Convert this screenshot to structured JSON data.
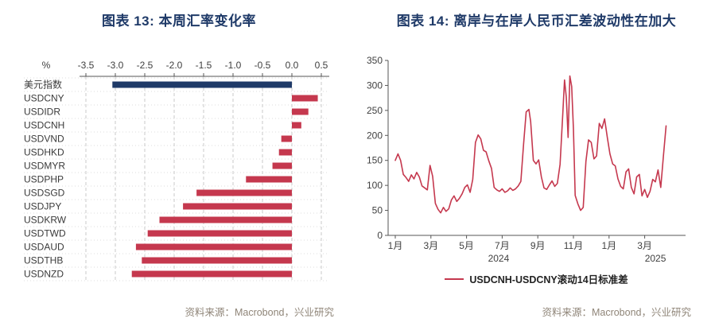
{
  "panels": {
    "left": {
      "title": "图表 13: 本周汇率变化率",
      "source": "资料来源：Macrobond，兴业研究"
    },
    "right": {
      "title": "图表 14: 离岸与在岸人民币汇差波动性在加大",
      "source": "资料来源：Macrobond，兴业研究",
      "legend": "USDCNH-USDCNY滚动14日标准差"
    }
  },
  "colors": {
    "title": "#1f3a68",
    "accent_red": "#c5384e",
    "accent_navy": "#1f3a68",
    "source_text": "#8f8578",
    "axis_text": "#3f3f3f",
    "grid": "#c9c9c9"
  },
  "chart_data": [
    {
      "type": "bar",
      "orientation": "horizontal",
      "title": "图表 13: 本周汇率变化率",
      "unit": "%",
      "categories": [
        "美元指数",
        "USDCNY",
        "USDIDR",
        "USDCNH",
        "USDVND",
        "USDHKD",
        "USDMYR",
        "USDPHP",
        "USDSGD",
        "USDJPY",
        "USDKRW",
        "USDTWD",
        "USDAUD",
        "USDTHB",
        "USDNZD"
      ],
      "values": [
        -3.05,
        0.44,
        0.28,
        0.16,
        -0.18,
        -0.22,
        -0.33,
        -0.78,
        -1.62,
        -1.85,
        -2.25,
        -2.45,
        -2.65,
        -2.55,
        -2.72
      ],
      "xlim": [
        -3.5,
        0.5
      ],
      "xticks": [
        -3.5,
        -3.0,
        -2.5,
        -2.0,
        -1.5,
        -1.0,
        -0.5,
        0.0,
        0.5
      ],
      "grid": "dashed-vertical",
      "highlight_index": 0
    },
    {
      "type": "line",
      "title": "图表 14: 离岸与在岸人民币汇差波动性在加大",
      "series_name": "USDCNH-USDCNY滚动14日标准差",
      "ylim": [
        0,
        350
      ],
      "yticks": [
        0,
        50,
        100,
        150,
        200,
        250,
        300,
        350
      ],
      "x_unit": "months_since_2024_01",
      "xtick_months": [
        0,
        2,
        4,
        6,
        8,
        10,
        12,
        14
      ],
      "xtick_labels": [
        "1月",
        "3月",
        "5月",
        "7月",
        "9月",
        "11月",
        "1月",
        "3月"
      ],
      "year_labels": [
        {
          "label": "2024",
          "month": 5.8
        },
        {
          "label": "2025",
          "month": 14.6
        }
      ],
      "legend_position": "bottom-center",
      "x": [
        0,
        0.15,
        0.3,
        0.45,
        0.6,
        0.75,
        0.9,
        1.05,
        1.2,
        1.35,
        1.5,
        1.65,
        1.8,
        1.95,
        2.1,
        2.25,
        2.4,
        2.55,
        2.7,
        2.85,
        3.0,
        3.15,
        3.3,
        3.45,
        3.6,
        3.75,
        3.9,
        4.05,
        4.2,
        4.35,
        4.5,
        4.65,
        4.8,
        4.95,
        5.1,
        5.25,
        5.4,
        5.55,
        5.7,
        5.85,
        6.0,
        6.15,
        6.3,
        6.45,
        6.6,
        6.75,
        6.9,
        7.05,
        7.2,
        7.35,
        7.5,
        7.6,
        7.75,
        7.9,
        8.05,
        8.2,
        8.35,
        8.5,
        8.65,
        8.8,
        8.95,
        9.1,
        9.25,
        9.4,
        9.5,
        9.6,
        9.7,
        9.8,
        9.9,
        10.0,
        10.1,
        10.25,
        10.4,
        10.55,
        10.7,
        10.85,
        11.0,
        11.15,
        11.3,
        11.45,
        11.6,
        11.75,
        11.9,
        12.05,
        12.2,
        12.35,
        12.5,
        12.65,
        12.8,
        12.95,
        13.1,
        13.25,
        13.4,
        13.55,
        13.7,
        13.85,
        14.0,
        14.15,
        14.3,
        14.45,
        14.6,
        14.75,
        14.9,
        15.05,
        15.2
      ],
      "y": [
        150,
        163,
        150,
        122,
        116,
        108,
        121,
        113,
        126,
        117,
        99,
        95,
        91,
        140,
        118,
        64,
        52,
        45,
        56,
        48,
        53,
        71,
        79,
        68,
        74,
        83,
        96,
        101,
        86,
        112,
        186,
        201,
        193,
        170,
        167,
        149,
        134,
        96,
        91,
        88,
        93,
        86,
        89,
        95,
        90,
        93,
        99,
        108,
        182,
        247,
        252,
        228,
        150,
        143,
        151,
        117,
        95,
        92,
        101,
        109,
        98,
        104,
        142,
        243,
        311,
        277,
        196,
        319,
        298,
        213,
        80,
        63,
        50,
        56,
        148,
        191,
        186,
        153,
        159,
        224,
        214,
        233,
        196,
        163,
        143,
        139,
        113,
        98,
        93,
        127,
        133,
        96,
        83,
        117,
        122,
        79,
        92,
        76,
        88,
        112,
        107,
        131,
        96,
        158,
        219
      ]
    }
  ]
}
